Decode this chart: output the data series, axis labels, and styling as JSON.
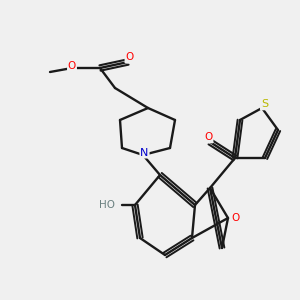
{
  "background_color": "#f0f0f0",
  "bond_color": "#1a1a1a",
  "atom_colors": {
    "O": "#ff0000",
    "N": "#0000cc",
    "S": "#b8b800",
    "H": "#6a8080",
    "C": "#1a1a1a"
  },
  "figsize": [
    3.0,
    3.0
  ],
  "dpi": 100
}
